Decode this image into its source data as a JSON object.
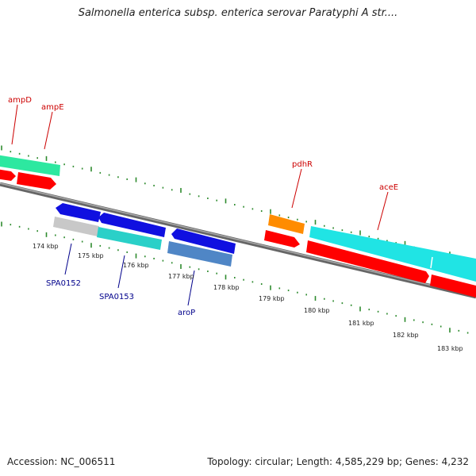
{
  "header": {
    "title": "Salmonella enterica subsp. enterica serovar Paratyphi A str...."
  },
  "footer": {
    "accession": "Accession: NC_006511",
    "topology": "Topology: circular; Length: 4,585,229 bp; Genes: 4,232"
  },
  "colors": {
    "backbone": "#7f7f7f",
    "tick": "#2e8b2e",
    "label_forward": "#cc0000",
    "label_reverse": "#00008b",
    "red": "#ff0000",
    "blue": "#1010e0",
    "cyan": "#20e4e4",
    "teal": "#2ad0c8",
    "green_cyan": "#2de8a0",
    "orange": "#ff8c00",
    "gray": "#c8c8c8",
    "steel": "#4f86c6"
  },
  "kbp_labels": [
    "174 kbp",
    "175 kbp",
    "176 kbp",
    "177 kbp",
    "178 kbp",
    "179 kbp",
    "180 kbp",
    "181 kbp",
    "182 kbp",
    "183 kbp"
  ],
  "gene_labels": {
    "forward": [
      "ampD",
      "ampE",
      "pdhR",
      "aceE"
    ],
    "reverse": [
      "SPA0152",
      "SPA0153",
      "aroP"
    ]
  }
}
